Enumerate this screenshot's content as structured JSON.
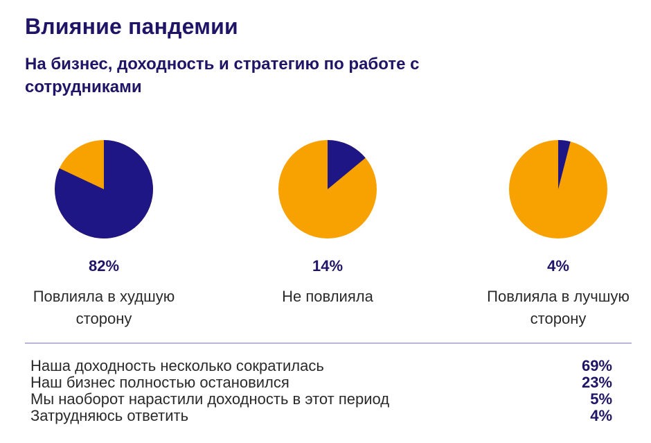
{
  "title": "Влияние пандемии",
  "subtitle": "На бизнес, доходность и стратегию по работе с сотрудниками",
  "chart_data": {
    "type": "pie",
    "colors": {
      "highlight": "#1f1685",
      "rest": "#f7a200"
    },
    "charts": [
      {
        "value": 82,
        "value_label": "82%",
        "label": "Повлияла в худшую сторону"
      },
      {
        "value": 14,
        "value_label": "14%",
        "label": "Не повлияла"
      },
      {
        "value": 4,
        "value_label": "4%",
        "label": "Повлияла в лучшую сторону"
      }
    ]
  },
  "breakdown": [
    {
      "label": "Наша доходность несколько сократилась",
      "value": "69%"
    },
    {
      "label": "Наш бизнес полностью остановился",
      "value": "23%"
    },
    {
      "label": "Мы наоборот нарастили доходность в этот период",
      "value": "5%"
    },
    {
      "label": "Затрудняюсь ответить",
      "value": "4%"
    }
  ]
}
